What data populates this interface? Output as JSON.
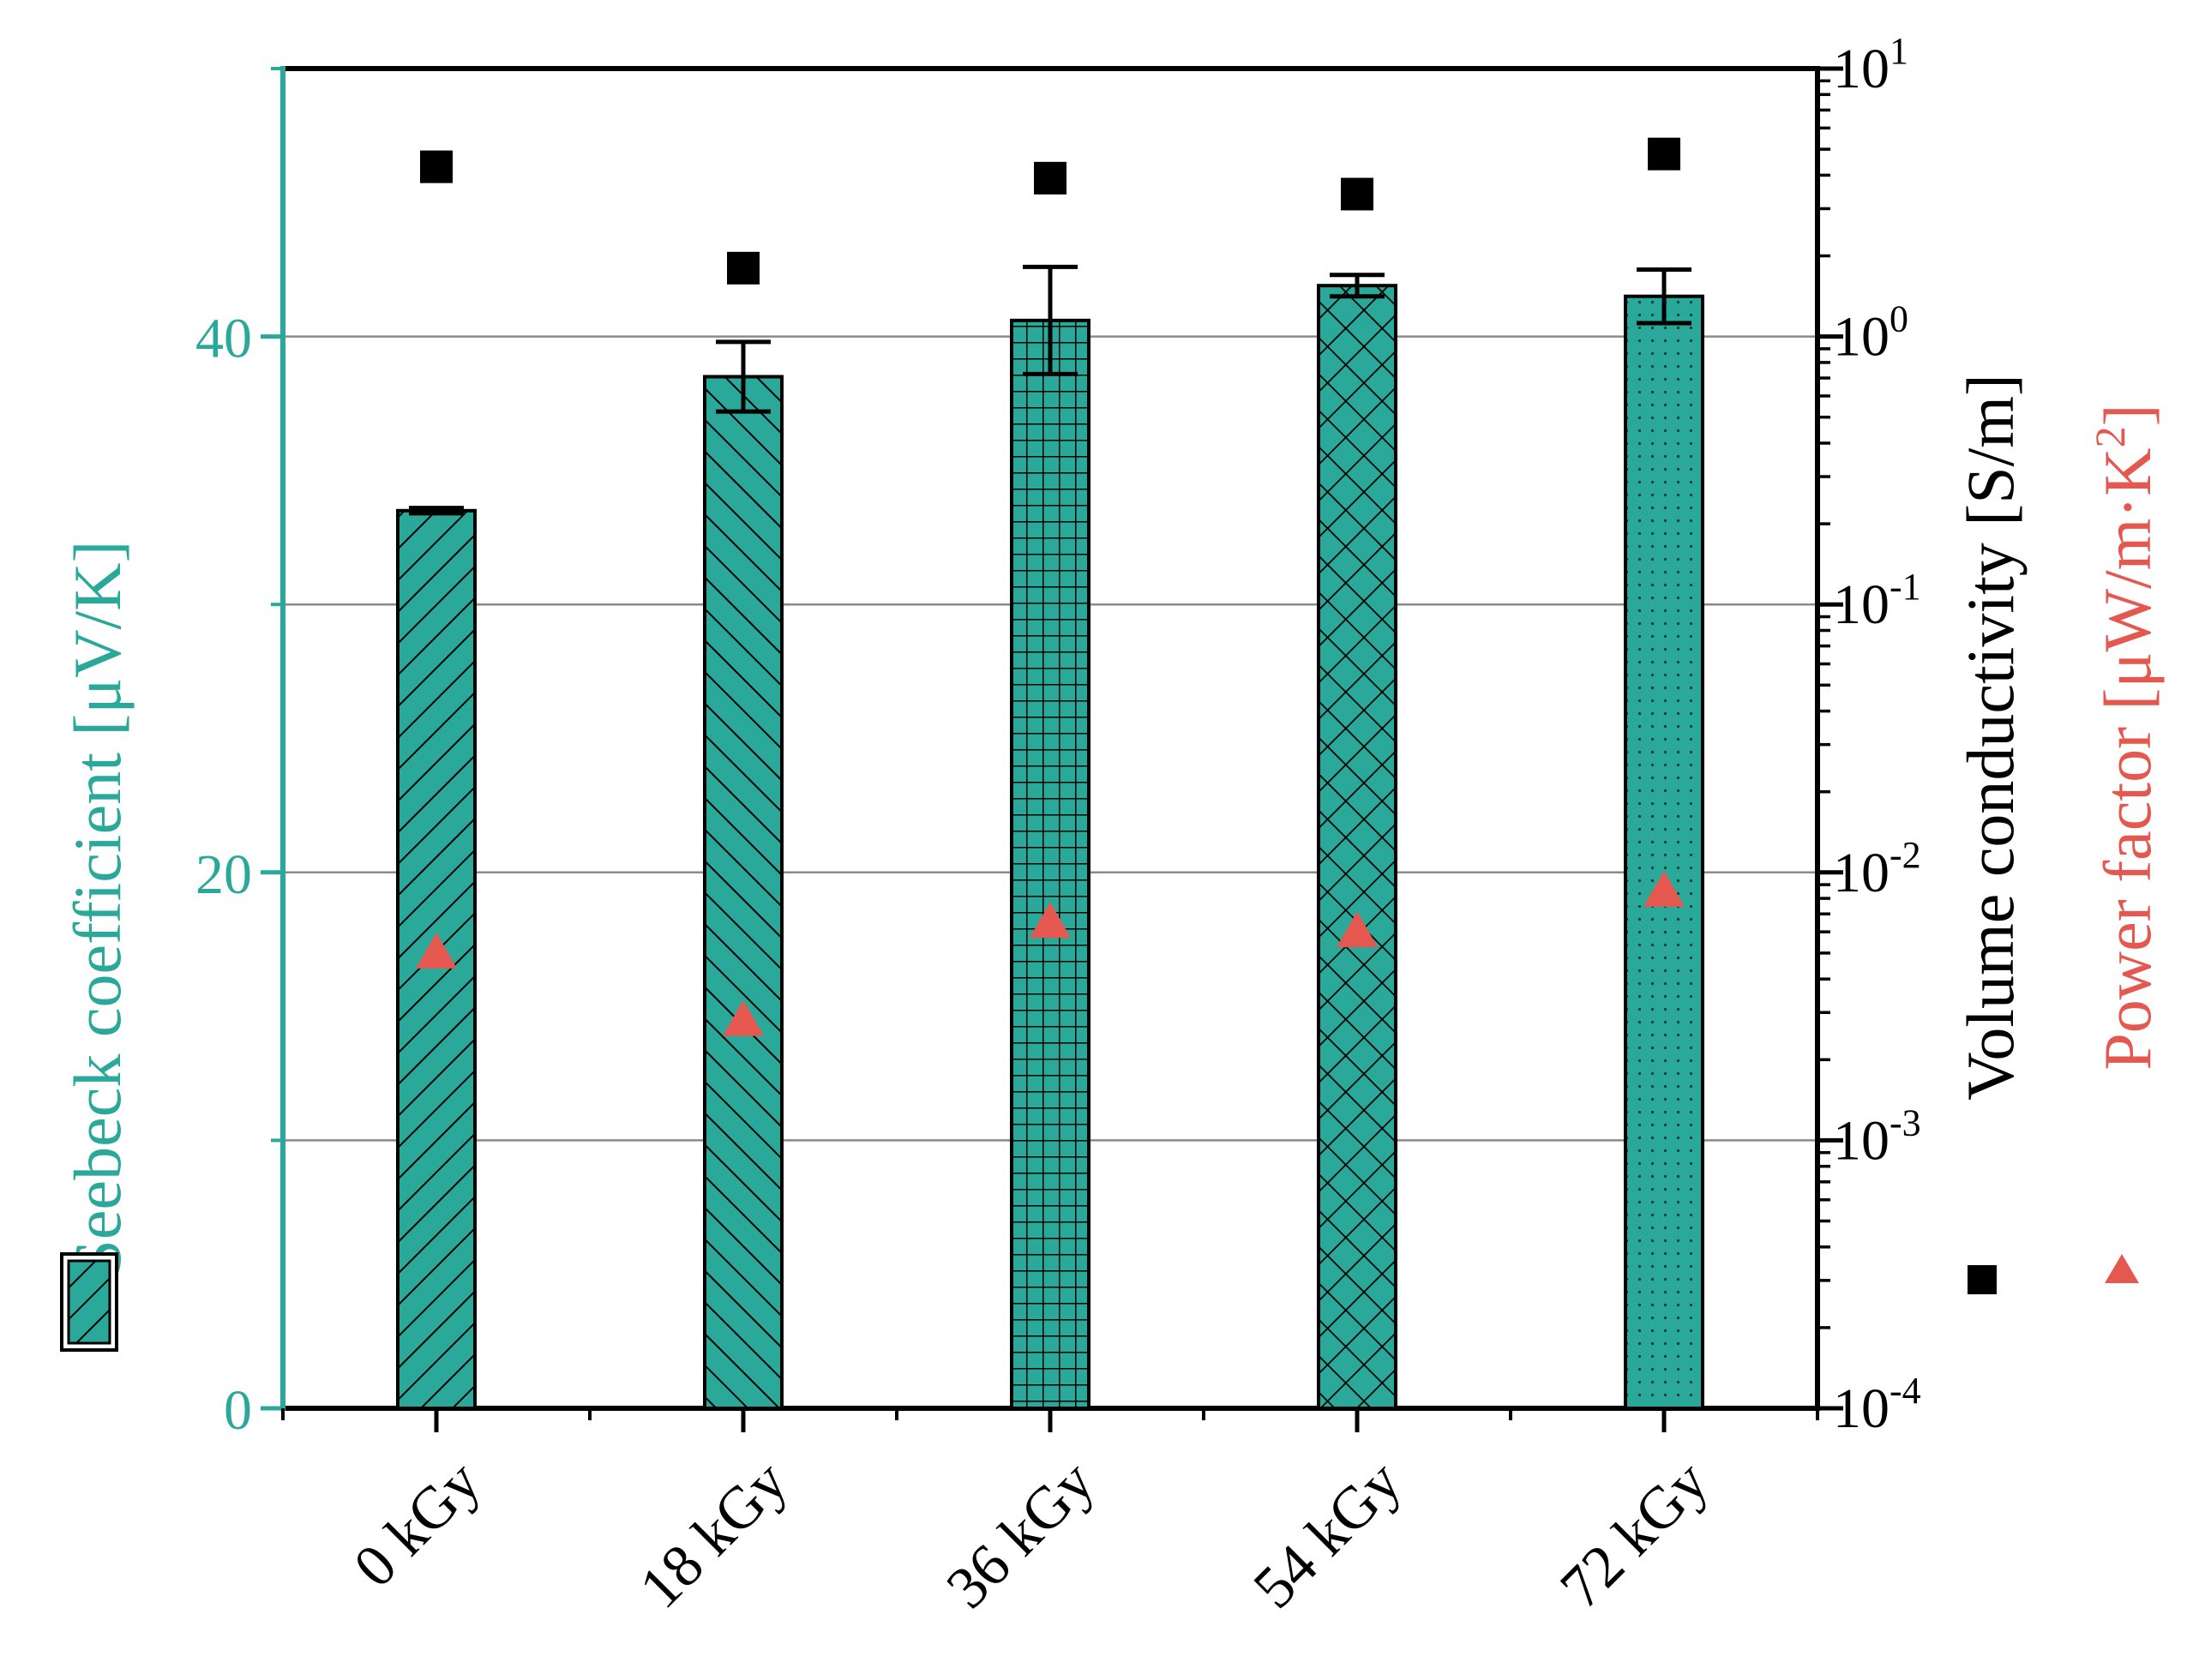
{
  "chart_data": {
    "type": "bar",
    "categories": [
      "0 kGy",
      "18 kGy",
      "36 kGy",
      "54 kGy",
      "72 kGy"
    ],
    "bar_patterns": [
      "diag-fwd",
      "diag-back",
      "grid",
      "crosshatch",
      "dots"
    ],
    "left_axis": {
      "label": "Seebeck coefficient [μV/K]",
      "range": [
        0,
        50
      ],
      "ticks": [
        0,
        20,
        40
      ],
      "tick_labels": [
        "0",
        "20",
        "40"
      ],
      "minor_ticks": [
        10,
        30,
        50
      ],
      "color": "#2aa99a"
    },
    "right_axis": {
      "scale": "log",
      "range": [
        0.0001,
        10
      ],
      "ticks": [
        0.0001,
        0.001,
        0.01,
        0.1,
        1,
        10
      ],
      "tick_mantissa": "10",
      "tick_exponents": [
        "-4",
        "-3",
        "-2",
        "-1",
        "0",
        "1"
      ],
      "label_conductivity": "Volume conductivity [S/m]",
      "label_power_factor": "Power factor [μW/m·K",
      "label_power_factor_sup": "2",
      "label_power_factor_end": "]",
      "power_factor_color": "#e5584f"
    },
    "series": [
      {
        "name": "Seebeck coefficient",
        "axis": "left",
        "kind": "bar",
        "values": [
          33.5,
          38.5,
          40.6,
          41.9,
          41.5
        ],
        "errors": [
          0.1,
          1.3,
          2.0,
          0.4,
          1.0
        ],
        "color": "#2aa99a"
      },
      {
        "name": "Volume conductivity",
        "axis": "right",
        "kind": "marker",
        "marker": "square",
        "values": [
          4.3,
          1.8,
          3.9,
          3.4,
          4.8
        ],
        "color": "#000000"
      },
      {
        "name": "Power factor",
        "axis": "right",
        "kind": "marker",
        "marker": "triangle",
        "values": [
          0.005,
          0.0028,
          0.0065,
          0.006,
          0.0085
        ],
        "color": "#e5584f"
      }
    ],
    "grid": true,
    "legend_placement": "beside each axis label"
  }
}
